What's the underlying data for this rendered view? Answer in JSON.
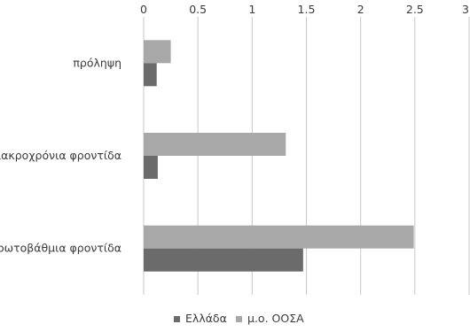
{
  "chart_data": {
    "type": "bar",
    "orientation": "horizontal",
    "categories": [
      "πρόληψη",
      "μακροχρόνια φροντίδα",
      "πρωτοβάθμια φροντίδα"
    ],
    "series": [
      {
        "name": "Ελλάδα",
        "values": [
          0.12,
          0.13,
          1.47
        ],
        "color": "#6b6b6b"
      },
      {
        "name": "μ.ο. ΟΟΣΑ",
        "values": [
          0.25,
          1.31,
          2.49
        ],
        "color": "#a8a8a8"
      }
    ],
    "xlim": [
      0,
      3
    ],
    "xticks": [
      "0",
      "0.5",
      "1",
      "1.5",
      "2",
      "2.5",
      "3"
    ],
    "x_axis_position": "top",
    "grid": true,
    "legend_position": "bottom-center",
    "title": "",
    "xlabel": "",
    "ylabel": ""
  }
}
